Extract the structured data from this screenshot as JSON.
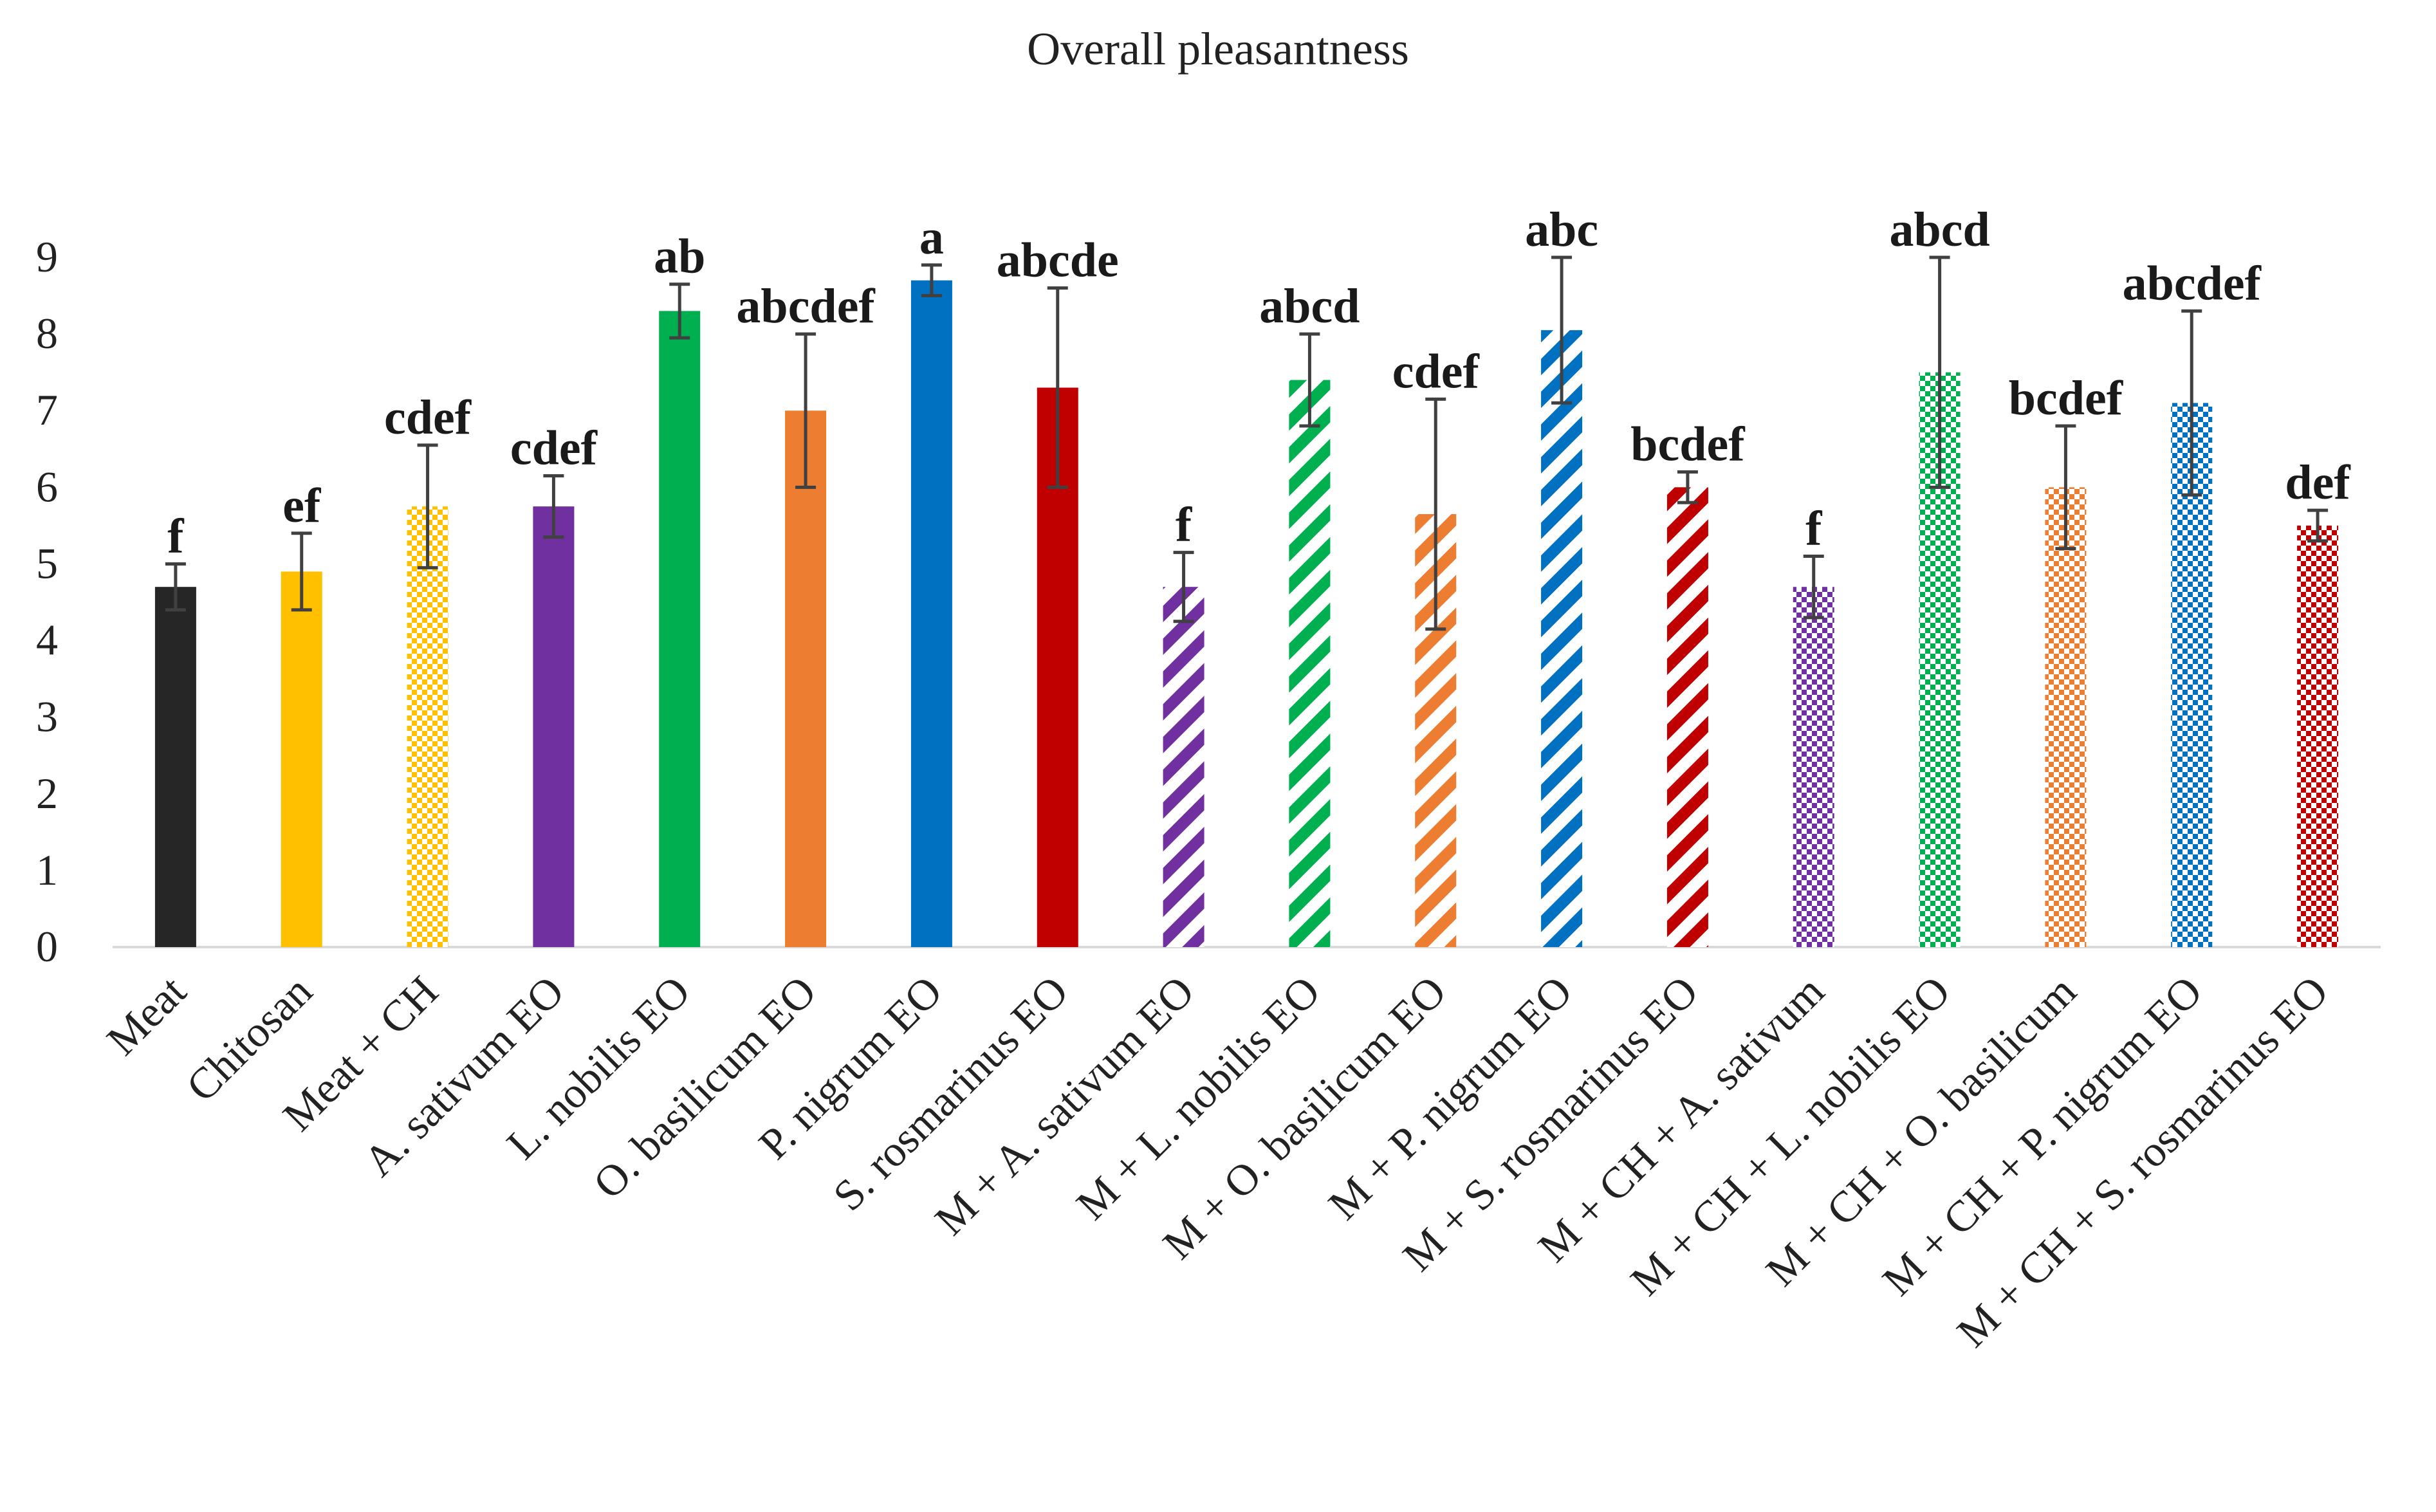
{
  "chart_data": {
    "type": "bar",
    "title": "Overall pleasantness",
    "xlabel": "",
    "ylabel": "",
    "ylim": [
      0,
      9
    ],
    "yticks": [
      0,
      1,
      2,
      3,
      4,
      5,
      6,
      7,
      8,
      9
    ],
    "grid": false,
    "legend": "none",
    "categories": [
      "Meat",
      "Chitosan",
      "Meat + CH",
      "A. sativum EO",
      "L. nobilis EO",
      "O. basilicum EO",
      "P. nigrum EO",
      "S. rosmarinus EO",
      "M + A. sativum EO",
      "M + L. nobilis EO",
      "M + O. basilicum EO",
      "M + P. nigrum EO",
      "M + S. rosmarinus EO",
      "M + CH + A. sativum",
      "M + CH + L. nobilis EO",
      "M + CH + O. basilicum",
      "M + CH + P. nigrum EO",
      "M + CH + S. rosmarinus EO"
    ],
    "values": [
      4.7,
      4.9,
      5.75,
      5.75,
      8.3,
      7.0,
      8.7,
      7.3,
      4.7,
      7.4,
      5.65,
      8.05,
      6.0,
      4.7,
      7.5,
      6.0,
      7.1,
      5.5
    ],
    "errors": [
      0.3,
      0.5,
      0.8,
      0.4,
      0.35,
      1.0,
      0.2,
      1.3,
      0.45,
      0.6,
      1.5,
      0.95,
      0.2,
      0.4,
      1.5,
      0.8,
      1.2,
      0.2
    ],
    "significance_letters": [
      "f",
      "ef",
      "cdef",
      "cdef",
      "ab",
      "abcdef",
      "a",
      "abcde",
      "f",
      "abcd",
      "cdef",
      "abc",
      "bcdef",
      "f",
      "abcd",
      "bcdef",
      "abcdef",
      "def"
    ],
    "bar_colors": [
      "#262626",
      "#ffc000",
      "#ffc000",
      "#7030a0",
      "#00b050",
      "#ed7d31",
      "#0070c0",
      "#c00000",
      "#7030a0",
      "#00b050",
      "#ed7d31",
      "#0070c0",
      "#c00000",
      "#7030a0",
      "#00b050",
      "#ed7d31",
      "#0070c0",
      "#c00000"
    ],
    "bar_fills": [
      "solid",
      "solid",
      "dotted",
      "solid",
      "solid",
      "solid",
      "solid",
      "solid",
      "diagonal",
      "diagonal",
      "diagonal",
      "diagonal",
      "diagonal",
      "dotted",
      "dotted",
      "dotted",
      "dotted",
      "dotted"
    ]
  }
}
